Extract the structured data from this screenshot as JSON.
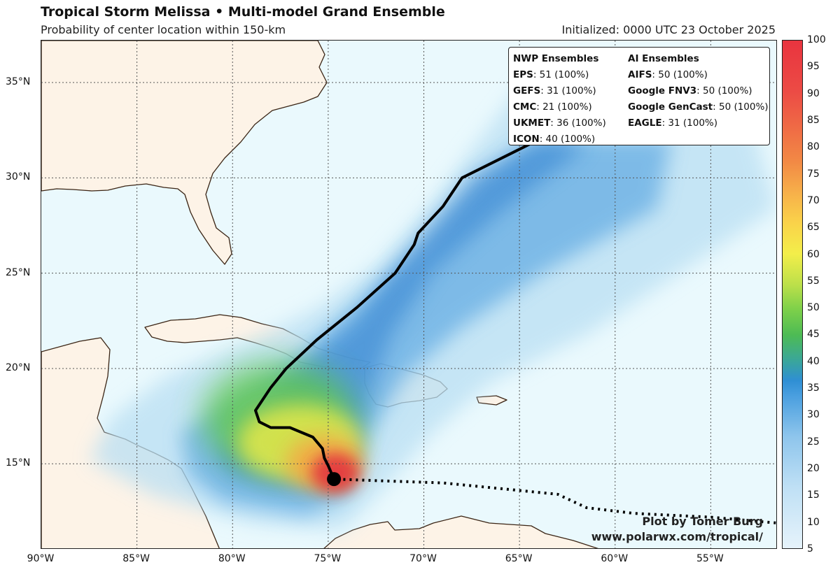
{
  "title": "Tropical Storm Melissa • Multi-model Grand Ensemble",
  "subtitle": "Probability of center location within 150-km",
  "initialized": "Initialized: 0000 UTC 23 October 2025",
  "map": {
    "lon_range": [
      -90,
      -51.5
    ],
    "lat_range": [
      10.5,
      37.2
    ],
    "x_ticks": [
      {
        "lon": -90,
        "label": "90°W"
      },
      {
        "lon": -85,
        "label": "85°W"
      },
      {
        "lon": -80,
        "label": "80°W"
      },
      {
        "lon": -75,
        "label": "75°W"
      },
      {
        "lon": -70,
        "label": "70°W"
      },
      {
        "lon": -65,
        "label": "65°W"
      },
      {
        "lon": -60,
        "label": "60°W"
      },
      {
        "lon": -55,
        "label": "55°W"
      }
    ],
    "y_ticks": [
      {
        "lat": 35,
        "label": "35°N"
      },
      {
        "lat": 30,
        "label": "30°N"
      },
      {
        "lat": 25,
        "label": "25°N"
      },
      {
        "lat": 20,
        "label": "20°N"
      },
      {
        "lat": 15,
        "label": "15°N"
      }
    ],
    "colors": {
      "ocean": "#eaf9fd",
      "land": "#fdf3e7",
      "coast": "#3a2414",
      "grid": "#555555",
      "track": "#000000"
    },
    "storm_position": {
      "lon": -74.7,
      "lat": 14.2
    },
    "past_track": [
      {
        "lon": -51.6,
        "lat": 11.9
      },
      {
        "lon": -55,
        "lat": 12.2
      },
      {
        "lon": -59,
        "lat": 12.4
      },
      {
        "lon": -61.5,
        "lat": 12.7
      },
      {
        "lon": -63,
        "lat": 13.4
      },
      {
        "lon": -66,
        "lat": 13.7
      },
      {
        "lon": -69,
        "lat": 14.0
      },
      {
        "lon": -72,
        "lat": 14.1
      },
      {
        "lon": -74.7,
        "lat": 14.2
      }
    ],
    "mean_track": [
      {
        "lon": -74.7,
        "lat": 14.2
      },
      {
        "lon": -75.0,
        "lat": 14.9
      },
      {
        "lon": -75.2,
        "lat": 15.3
      },
      {
        "lon": -75.3,
        "lat": 15.8
      },
      {
        "lon": -75.8,
        "lat": 16.4
      },
      {
        "lon": -77.0,
        "lat": 16.9
      },
      {
        "lon": -78.0,
        "lat": 16.9
      },
      {
        "lon": -78.6,
        "lat": 17.2
      },
      {
        "lon": -78.8,
        "lat": 17.8
      },
      {
        "lon": -78.0,
        "lat": 19.0
      },
      {
        "lon": -77.2,
        "lat": 20.0
      },
      {
        "lon": -75.6,
        "lat": 21.5
      },
      {
        "lon": -73.5,
        "lat": 23.2
      },
      {
        "lon": -71.5,
        "lat": 25.0
      },
      {
        "lon": -70.5,
        "lat": 26.5
      },
      {
        "lon": -70.3,
        "lat": 27.1
      },
      {
        "lon": -69.0,
        "lat": 28.5
      },
      {
        "lon": -68.0,
        "lat": 30.0
      },
      {
        "lon": -65.0,
        "lat": 31.5
      },
      {
        "lon": -64.0,
        "lat": 32.0
      }
    ],
    "probability_colorbar": {
      "min": 5,
      "max": 100,
      "labels": [
        "100",
        "95",
        "90",
        "85",
        "80",
        "75",
        "70",
        "65",
        "60",
        "55",
        "50",
        "45",
        "40",
        "35",
        "30",
        "25",
        "20",
        "15",
        "10",
        "5"
      ]
    }
  },
  "legend": {
    "nwp_header": "NWP Ensembles",
    "ai_header": "AI Ensembles",
    "nwp": [
      {
        "name": "EPS",
        "value": ": 51 (100%)"
      },
      {
        "name": "GEFS",
        "value": ": 31 (100%)"
      },
      {
        "name": "CMC",
        "value": ": 21 (100%)"
      },
      {
        "name": "UKMET",
        "value": ": 36 (100%)"
      },
      {
        "name": "ICON",
        "value": ": 40 (100%)"
      }
    ],
    "ai": [
      {
        "name": "AIFS",
        "value": ": 50 (100%)"
      },
      {
        "name": "Google FNV3",
        "value": ": 50 (100%)"
      },
      {
        "name": "Google GenCast",
        "value": ": 50 (100%)"
      },
      {
        "name": "EAGLE",
        "value": ": 31 (100%)"
      }
    ]
  },
  "credit": {
    "line1": "Plot by Tomer Burg",
    "line2": "www.polarwx.com/tropical/"
  }
}
